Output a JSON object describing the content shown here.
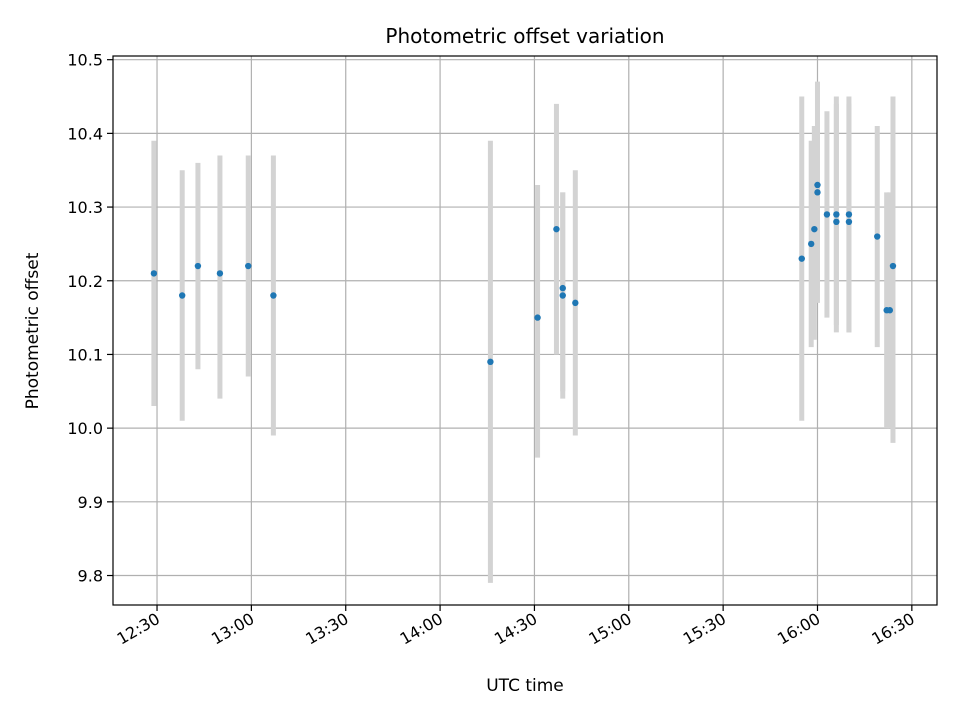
{
  "chart_data": {
    "type": "scatter",
    "title": "Photometric offset variation",
    "xlabel": "UTC time",
    "ylabel": "Photometric offset",
    "x_axis_type": "time",
    "xlim": [
      "12:16",
      "16:38"
    ],
    "ylim": [
      9.76,
      10.505
    ],
    "grid": true,
    "marker_color": "#1f77b4",
    "errorbar_color": "#d3d3d3",
    "x_ticks": [
      "12:30",
      "13:00",
      "13:30",
      "14:00",
      "14:30",
      "15:00",
      "15:30",
      "16:00",
      "16:30"
    ],
    "y_ticks": [
      "9.8",
      "9.9",
      "10.0",
      "10.1",
      "10.2",
      "10.3",
      "10.4",
      "10.5"
    ],
    "series": [
      {
        "points": [
          {
            "x": "12:29",
            "y": 10.21,
            "low": 10.03,
            "high": 10.39
          },
          {
            "x": "12:38",
            "y": 10.18,
            "low": 10.01,
            "high": 10.35
          },
          {
            "x": "12:43",
            "y": 10.22,
            "low": 10.08,
            "high": 10.36
          },
          {
            "x": "12:50",
            "y": 10.21,
            "low": 10.04,
            "high": 10.37
          },
          {
            "x": "12:59",
            "y": 10.22,
            "low": 10.07,
            "high": 10.37
          },
          {
            "x": "13:07",
            "y": 10.18,
            "low": 9.99,
            "high": 10.37
          },
          {
            "x": "14:16",
            "y": 10.09,
            "low": 9.79,
            "high": 10.39
          },
          {
            "x": "14:31",
            "y": 10.15,
            "low": 9.96,
            "high": 10.33
          },
          {
            "x": "14:37",
            "y": 10.27,
            "low": 10.1,
            "high": 10.44
          },
          {
            "x": "14:39",
            "y": 10.18,
            "low": 10.04,
            "high": 10.32
          },
          {
            "x": "14:39",
            "y": 10.19,
            "low": 10.05,
            "high": 10.32
          },
          {
            "x": "14:43",
            "y": 10.17,
            "low": 9.99,
            "high": 10.35
          },
          {
            "x": "15:55",
            "y": 10.23,
            "low": 10.01,
            "high": 10.45
          },
          {
            "x": "15:58",
            "y": 10.25,
            "low": 10.11,
            "high": 10.39
          },
          {
            "x": "15:59",
            "y": 10.27,
            "low": 10.12,
            "high": 10.41
          },
          {
            "x": "16:00",
            "y": 10.33,
            "low": 10.19,
            "high": 10.47
          },
          {
            "x": "16:00",
            "y": 10.32,
            "low": 10.17,
            "high": 10.47
          },
          {
            "x": "16:03",
            "y": 10.29,
            "low": 10.15,
            "high": 10.43
          },
          {
            "x": "16:06",
            "y": 10.29,
            "low": 10.14,
            "high": 10.45
          },
          {
            "x": "16:06",
            "y": 10.28,
            "low": 10.13,
            "high": 10.44
          },
          {
            "x": "16:10",
            "y": 10.29,
            "low": 10.13,
            "high": 10.45
          },
          {
            "x": "16:10",
            "y": 10.28,
            "low": 10.13,
            "high": 10.44
          },
          {
            "x": "16:19",
            "y": 10.26,
            "low": 10.11,
            "high": 10.41
          },
          {
            "x": "16:22",
            "y": 10.16,
            "low": 10.0,
            "high": 10.32
          },
          {
            "x": "16:23",
            "y": 10.16,
            "low": 10.0,
            "high": 10.32
          },
          {
            "x": "16:24",
            "y": 10.22,
            "low": 9.98,
            "high": 10.45
          }
        ]
      }
    ]
  }
}
